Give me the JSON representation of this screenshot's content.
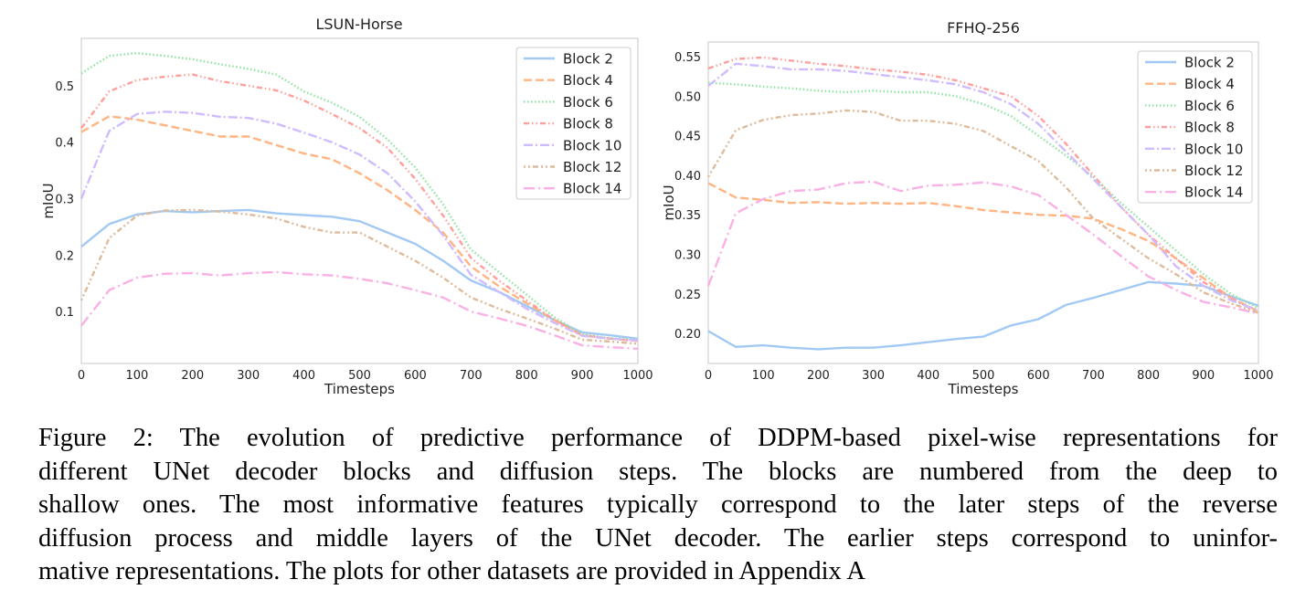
{
  "chart_data": [
    {
      "type": "line",
      "title": "LSUN-Horse",
      "xlabel": "Timesteps",
      "ylabel": "mIoU",
      "xlim": [
        0,
        1000
      ],
      "ylim": [
        0.008,
        0.584
      ],
      "xticks": [
        0,
        100,
        200,
        300,
        400,
        500,
        600,
        700,
        800,
        900,
        1000
      ],
      "yticks": [
        0.1,
        0.2,
        0.3,
        0.4,
        0.5
      ],
      "ytick_labels": [
        "0.1",
        "0.2",
        "0.3",
        "0.4",
        "0.5"
      ],
      "grid": false,
      "legend": "top-right",
      "x": [
        0,
        50,
        100,
        150,
        200,
        250,
        300,
        350,
        400,
        450,
        500,
        550,
        600,
        650,
        700,
        750,
        800,
        850,
        900,
        950,
        1000
      ],
      "series": [
        {
          "name": "Block 2",
          "color": "#a1c9f4",
          "dash": "solid",
          "values": [
            0.215,
            0.255,
            0.272,
            0.278,
            0.276,
            0.278,
            0.28,
            0.274,
            0.271,
            0.268,
            0.26,
            0.24,
            0.22,
            0.19,
            0.155,
            0.135,
            0.11,
            0.085,
            0.063,
            0.058,
            0.052
          ]
        },
        {
          "name": "Block 4",
          "color": "#ffb482",
          "dash": "dashed",
          "values": [
            0.418,
            0.446,
            0.44,
            0.43,
            0.42,
            0.41,
            0.41,
            0.395,
            0.38,
            0.37,
            0.345,
            0.315,
            0.28,
            0.24,
            0.18,
            0.145,
            0.115,
            0.085,
            0.058,
            0.052,
            0.048
          ]
        },
        {
          "name": "Block 6",
          "color": "#8de5a1",
          "dash": "dotted",
          "values": [
            0.522,
            0.553,
            0.558,
            0.553,
            0.547,
            0.538,
            0.53,
            0.52,
            0.49,
            0.47,
            0.445,
            0.405,
            0.355,
            0.29,
            0.21,
            0.17,
            0.13,
            0.09,
            0.06,
            0.053,
            0.05
          ]
        },
        {
          "name": "Block 8",
          "color": "#ff9f9b",
          "dash": "dash-dot-dot",
          "values": [
            0.425,
            0.49,
            0.51,
            0.516,
            0.52,
            0.508,
            0.5,
            0.492,
            0.474,
            0.45,
            0.425,
            0.39,
            0.335,
            0.27,
            0.195,
            0.155,
            0.12,
            0.085,
            0.058,
            0.052,
            0.048
          ]
        },
        {
          "name": "Block 10",
          "color": "#d0bbff",
          "dash": "dash-dot",
          "values": [
            0.3,
            0.42,
            0.45,
            0.454,
            0.452,
            0.445,
            0.443,
            0.433,
            0.417,
            0.4,
            0.378,
            0.345,
            0.295,
            0.235,
            0.165,
            0.135,
            0.105,
            0.08,
            0.057,
            0.052,
            0.049
          ]
        },
        {
          "name": "Block 12",
          "color": "#debb9b",
          "dash": "dot-dot-dash",
          "values": [
            0.12,
            0.23,
            0.27,
            0.279,
            0.28,
            0.277,
            0.272,
            0.265,
            0.25,
            0.24,
            0.24,
            0.215,
            0.19,
            0.16,
            0.125,
            0.105,
            0.088,
            0.07,
            0.05,
            0.047,
            0.043
          ]
        },
        {
          "name": "Block 14",
          "color": "#fab0e4",
          "dash": "long-dash-dot",
          "values": [
            0.075,
            0.138,
            0.16,
            0.167,
            0.168,
            0.164,
            0.168,
            0.17,
            0.166,
            0.164,
            0.158,
            0.15,
            0.138,
            0.125,
            0.1,
            0.088,
            0.075,
            0.058,
            0.04,
            0.037,
            0.034
          ]
        }
      ]
    },
    {
      "type": "line",
      "title": "FFHQ-256",
      "xlabel": "Timesteps",
      "ylabel": "mIoU",
      "xlim": [
        0,
        1000
      ],
      "ylim": [
        0.162,
        0.5685
      ],
      "xticks": [
        0,
        100,
        200,
        300,
        400,
        500,
        600,
        700,
        800,
        900,
        1000
      ],
      "yticks": [
        0.2,
        0.25,
        0.3,
        0.35,
        0.4,
        0.45,
        0.5,
        0.55
      ],
      "ytick_labels": [
        "0.20",
        "0.25",
        "0.30",
        "0.35",
        "0.40",
        "0.45",
        "0.50",
        "0.55"
      ],
      "grid": false,
      "legend": "top-right",
      "x": [
        0,
        50,
        100,
        150,
        200,
        250,
        300,
        350,
        400,
        450,
        500,
        550,
        600,
        650,
        700,
        750,
        800,
        850,
        900,
        950,
        1000
      ],
      "series": [
        {
          "name": "Block 2",
          "color": "#a1c9f4",
          "dash": "solid",
          "values": [
            0.203,
            0.183,
            0.185,
            0.182,
            0.18,
            0.182,
            0.182,
            0.185,
            0.189,
            0.193,
            0.196,
            0.21,
            0.218,
            0.236,
            0.245,
            0.255,
            0.265,
            0.263,
            0.26,
            0.247,
            0.235
          ]
        },
        {
          "name": "Block 4",
          "color": "#ffb482",
          "dash": "dashed",
          "values": [
            0.39,
            0.372,
            0.369,
            0.365,
            0.366,
            0.364,
            0.365,
            0.364,
            0.365,
            0.361,
            0.356,
            0.353,
            0.35,
            0.349,
            0.345,
            0.332,
            0.317,
            0.295,
            0.27,
            0.245,
            0.228
          ]
        },
        {
          "name": "Block 6",
          "color": "#8de5a1",
          "dash": "dotted",
          "values": [
            0.517,
            0.515,
            0.512,
            0.51,
            0.507,
            0.505,
            0.507,
            0.505,
            0.505,
            0.5,
            0.49,
            0.475,
            0.45,
            0.425,
            0.398,
            0.365,
            0.335,
            0.305,
            0.275,
            0.25,
            0.232
          ]
        },
        {
          "name": "Block 8",
          "color": "#ff9f9b",
          "dash": "dash-dot-dot",
          "values": [
            0.535,
            0.547,
            0.549,
            0.545,
            0.541,
            0.538,
            0.534,
            0.531,
            0.527,
            0.52,
            0.51,
            0.5,
            0.475,
            0.44,
            0.4,
            0.36,
            0.325,
            0.295,
            0.265,
            0.245,
            0.226
          ]
        },
        {
          "name": "Block 10",
          "color": "#d0bbff",
          "dash": "dash-dot",
          "values": [
            0.513,
            0.541,
            0.538,
            0.534,
            0.534,
            0.532,
            0.528,
            0.524,
            0.52,
            0.515,
            0.505,
            0.49,
            0.465,
            0.43,
            0.395,
            0.36,
            0.325,
            0.285,
            0.26,
            0.242,
            0.229
          ]
        },
        {
          "name": "Block 12",
          "color": "#debb9b",
          "dash": "dot-dot-dash",
          "values": [
            0.398,
            0.457,
            0.47,
            0.476,
            0.478,
            0.482,
            0.48,
            0.469,
            0.469,
            0.465,
            0.456,
            0.437,
            0.418,
            0.385,
            0.345,
            0.32,
            0.295,
            0.275,
            0.252,
            0.238,
            0.226
          ]
        },
        {
          "name": "Block 14",
          "color": "#fab0e4",
          "dash": "long-dash-dot",
          "values": [
            0.26,
            0.352,
            0.37,
            0.38,
            0.382,
            0.39,
            0.392,
            0.38,
            0.387,
            0.388,
            0.391,
            0.386,
            0.375,
            0.35,
            0.325,
            0.298,
            0.272,
            0.255,
            0.24,
            0.233,
            0.225
          ]
        }
      ]
    }
  ],
  "caption": {
    "lines": [
      "Figure 2: The evolution of predictive performance of DDPM-based pixel-wise representations for",
      "different UNet decoder blocks and diffusion steps.  The blocks are numbered from the deep to",
      "shallow ones.  The most informative features typically correspond to the later steps of the reverse",
      "diffusion process and middle layers of the UNet decoder.  The earlier steps correspond to uninfor-",
      "mative representations. The plots for other datasets are provided in Appendix A"
    ]
  }
}
